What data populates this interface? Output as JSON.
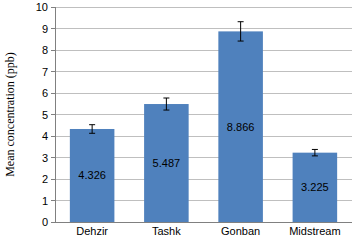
{
  "chart_data": {
    "type": "bar",
    "y_label": "Mean concentration (ppb)",
    "categories": [
      "Dehzir",
      "Tashk",
      "Gonban",
      "Midstream"
    ],
    "values": [
      4.326,
      5.487,
      8.866,
      3.225
    ],
    "errors": [
      0.2,
      0.28,
      0.45,
      0.15
    ],
    "color": "#4f81bd",
    "ylim": [
      0,
      10
    ],
    "yticks": [
      0,
      1,
      2,
      3,
      4,
      5,
      6,
      7,
      8,
      9,
      10
    ],
    "grid": true,
    "data_labels": true
  }
}
